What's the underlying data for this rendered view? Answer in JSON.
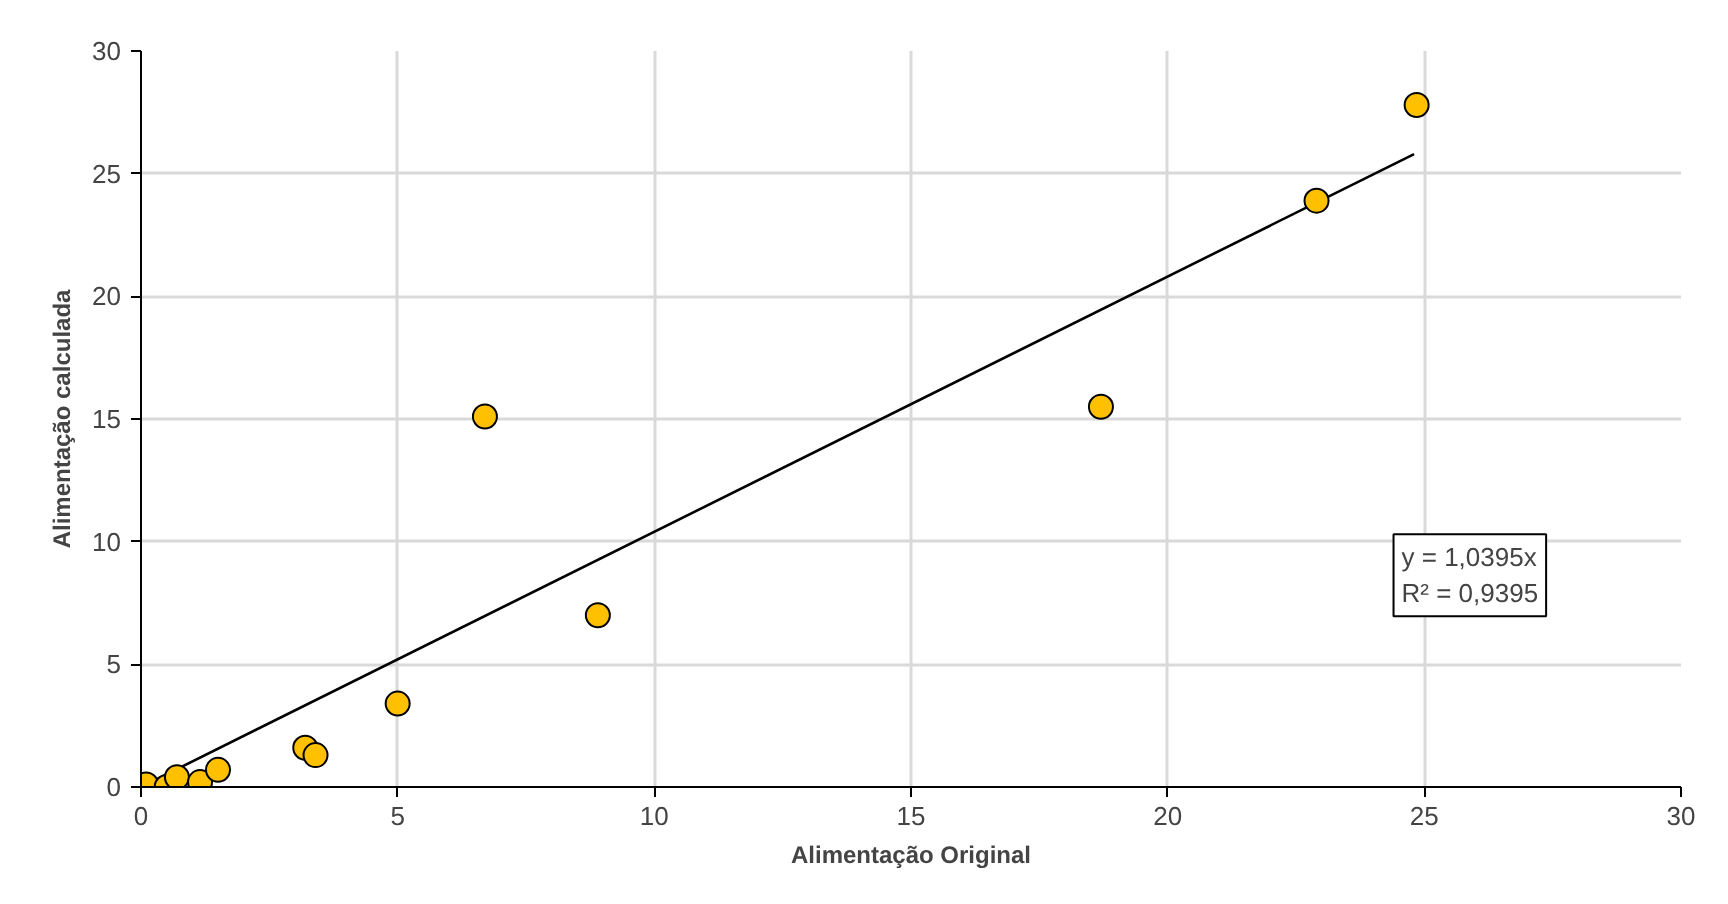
{
  "chart_data": {
    "type": "scatter",
    "xlabel": "Alimentação Original",
    "ylabel": "Alimentação calculada",
    "xlim": [
      0,
      30
    ],
    "ylim": [
      0,
      30
    ],
    "xticks": [
      0,
      5,
      10,
      15,
      20,
      25,
      30
    ],
    "yticks": [
      0,
      5,
      10,
      15,
      20,
      25,
      30
    ],
    "grid": true,
    "series": [
      {
        "color": "#ffc000",
        "marker": "circle",
        "x": [
          0.1,
          0.5,
          0.7,
          1.15,
          1.5,
          3.2,
          3.4,
          5.0,
          6.7,
          8.9,
          18.7,
          22.9,
          24.85
        ],
        "values": [
          0.1,
          0.0,
          0.4,
          0.2,
          0.7,
          1.6,
          1.3,
          3.4,
          15.1,
          7.0,
          15.5,
          23.9,
          27.8
        ]
      },
      {
        "type": "line",
        "marker": "none",
        "color": "#000000",
        "x": [
          0,
          24.8
        ],
        "values": [
          0,
          25.8
        ],
        "line_style": "solid"
      }
    ],
    "annotations": [
      "y = 1,0395x\nR² = 0,9395"
    ]
  }
}
